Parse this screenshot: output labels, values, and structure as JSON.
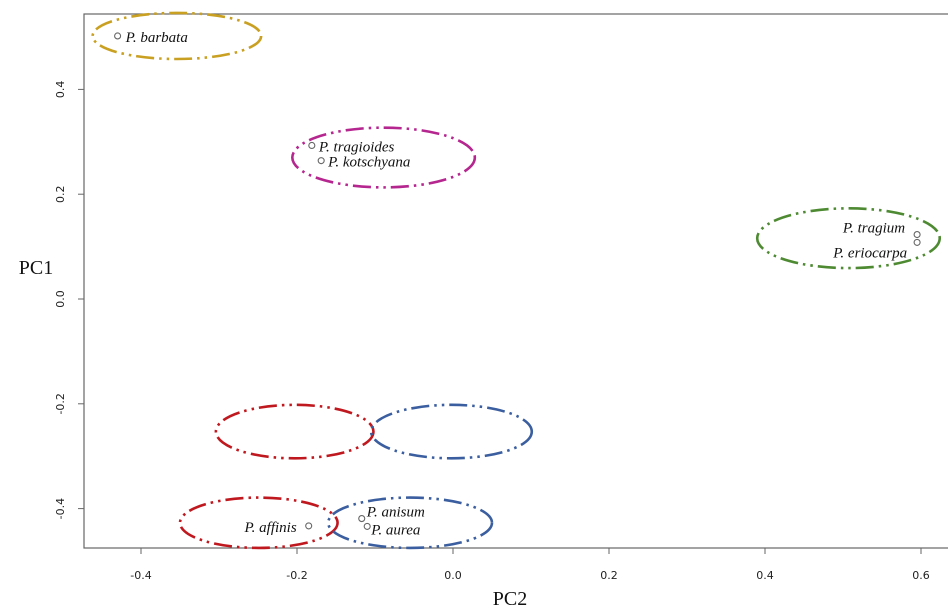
{
  "chart_data": {
    "type": "scatter",
    "title": "",
    "xlabel": "PC2",
    "ylabel": "PC1",
    "xlim": [
      -0.47,
      0.63
    ],
    "ylim": [
      -0.47,
      0.54
    ],
    "xticks": [
      -0.4,
      -0.2,
      0.0,
      0.2,
      0.4,
      0.6
    ],
    "xtick_labels": [
      "-0.4",
      "-0.2",
      "0.0",
      "0.2",
      "0.4",
      "0.6"
    ],
    "yticks": [
      -0.4,
      -0.2,
      0.0,
      0.2,
      0.4
    ],
    "ytick_labels": [
      "-0.4",
      "-0.2",
      "0.0",
      "0.2",
      "0.4"
    ],
    "grid": false,
    "points": [
      {
        "label": "P. barbata",
        "x": -0.43,
        "y": 0.502
      },
      {
        "label": "P. tragioides",
        "x": -0.181,
        "y": 0.293
      },
      {
        "label": "P. kotschyana",
        "x": -0.169,
        "y": 0.264
      },
      {
        "label": "P. tragium",
        "x": 0.595,
        "y": 0.123
      },
      {
        "label": "P. eriocarpa",
        "x": 0.595,
        "y": 0.108
      },
      {
        "label": "P. affinis",
        "x": -0.185,
        "y": -0.433
      },
      {
        "label": "P. anisum",
        "x": -0.117,
        "y": -0.419
      },
      {
        "label": "P. aurea",
        "x": -0.11,
        "y": -0.434
      }
    ],
    "groups": [
      {
        "color": "#C9A021",
        "cx": -0.354,
        "cy": 0.502,
        "rx": 0.108,
        "ry": 0.044
      },
      {
        "color": "#B5268F",
        "cx": -0.089,
        "cy": 0.27,
        "rx": 0.117,
        "ry": 0.057
      },
      {
        "color": "#4E8A32",
        "cx": 0.507,
        "cy": 0.116,
        "rx": 0.117,
        "ry": 0.057
      },
      {
        "color": "#C0181F",
        "cx": -0.203,
        "cy": -0.253,
        "rx": 0.101,
        "ry": 0.051
      },
      {
        "color": "#3A5E9F",
        "cx": -0.002,
        "cy": -0.253,
        "rx": 0.103,
        "ry": 0.051
      },
      {
        "color": "#C0181F",
        "cx": -0.249,
        "cy": -0.427,
        "rx": 0.101,
        "ry": 0.048
      },
      {
        "color": "#3A5E9F",
        "cx": -0.055,
        "cy": -0.427,
        "rx": 0.105,
        "ry": 0.048
      }
    ]
  }
}
